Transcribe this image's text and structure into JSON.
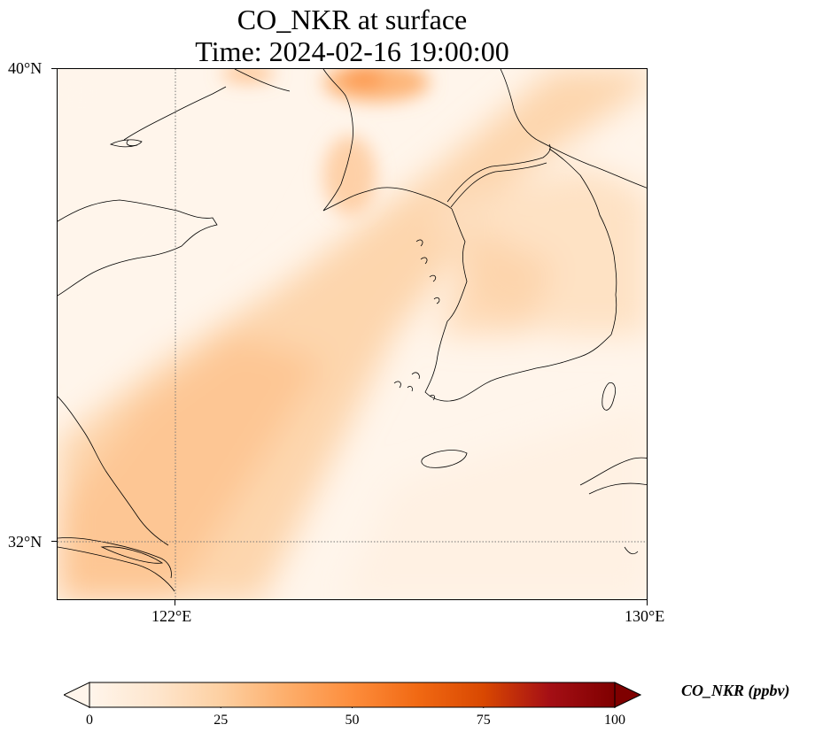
{
  "title_line1": "CO_NKR at surface",
  "title_line2": "Time: 2024-02-16 19:00:00",
  "map": {
    "lon_range": [
      119.5,
      132.0
    ],
    "lat_range": [
      30.75,
      40.0
    ],
    "lat_labels": [
      "40°N",
      "32°N"
    ],
    "lon_labels": [
      "122°E",
      "130°E"
    ],
    "gridlines": {
      "lon": 122,
      "lat": 32,
      "style": "dotted"
    },
    "field_colors": {
      "low": "#fff5eb",
      "light": "#fee6ce",
      "mid": "#fdd0a2",
      "high": "#fdae6b",
      "peak": "#fd8d3c"
    }
  },
  "colorbar": {
    "title": "CO_NKR (ppbv)",
    "min": 0,
    "max": 100,
    "ticks": [
      "0",
      "25",
      "50",
      "75",
      "100"
    ],
    "colormap": [
      "#fff5eb",
      "#fee6ce",
      "#fdd0a2",
      "#fdae6b",
      "#fd8d3c",
      "#f16913",
      "#d94801",
      "#a50f15",
      "#7f0000"
    ],
    "extend": "both"
  }
}
